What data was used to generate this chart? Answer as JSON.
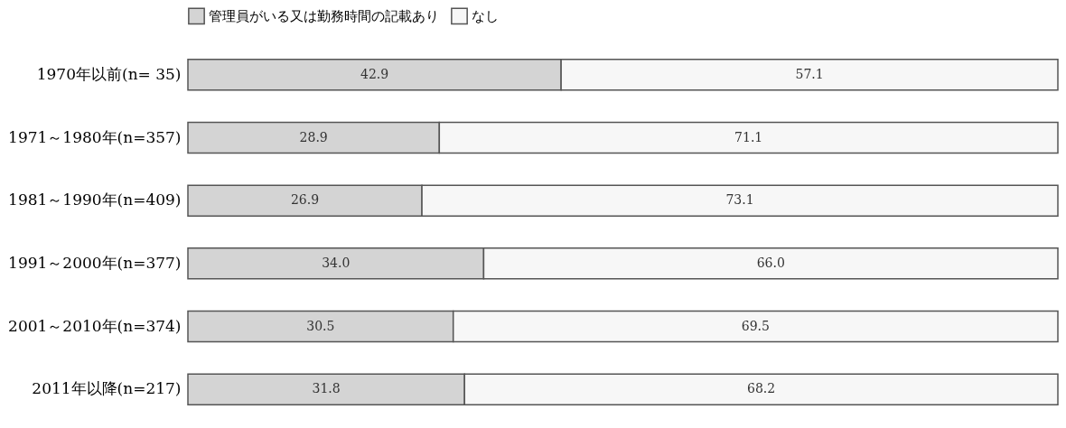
{
  "chart_data": {
    "type": "bar",
    "orientation": "horizontal",
    "stacked": true,
    "data_labels": true,
    "tick_labels": "y",
    "legend": "top",
    "grid": false,
    "xlim": [
      0,
      100
    ],
    "categories": [
      "1970年以前(n= 35)",
      "1971～1980年(n=357)",
      "1981～1990年(n=409)",
      "1991～2000年(n=377)",
      "2001～2010年(n=374)",
      "2011年以降(n=217)"
    ],
    "series": [
      {
        "name": "管理員がいる又は勤務時間の記載あり",
        "color": "#d4d4d4",
        "values": [
          42.9,
          28.9,
          26.9,
          34.0,
          30.5,
          31.8
        ],
        "value_labels": [
          "42.9",
          "28.9",
          "26.9",
          "34.0",
          "30.5",
          "31.8"
        ]
      },
      {
        "name": "なし",
        "color": "#f7f7f7",
        "values": [
          57.1,
          71.1,
          73.1,
          66.0,
          69.5,
          68.2
        ],
        "value_labels": [
          "57.1",
          "71.1",
          "73.1",
          "66.0",
          "69.5",
          "68.2"
        ]
      }
    ]
  }
}
